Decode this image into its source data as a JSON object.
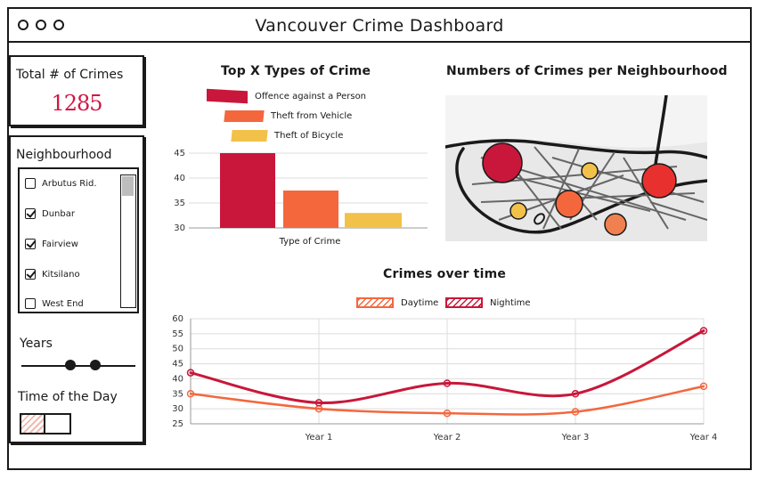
{
  "window": {
    "title": "Vancouver Crime Dashboard"
  },
  "total": {
    "label": "Total # of Crimes",
    "value": "1285",
    "color": "#d11745"
  },
  "filters": {
    "neighbourhood_label": "Neighbourhood",
    "neighbourhoods": [
      {
        "label": "Arbutus Rid.",
        "checked": false
      },
      {
        "label": "Dunbar",
        "checked": true
      },
      {
        "label": "Fairview",
        "checked": true
      },
      {
        "label": "Kitsilano",
        "checked": true
      },
      {
        "label": "West End",
        "checked": false
      }
    ],
    "years_label": "Years",
    "years_range": [
      0.43,
      0.65
    ],
    "time_of_day_label": "Time of the Day",
    "time_of_day_selected": "left"
  },
  "bar_section": {
    "title": "Top X Types of Crime",
    "legend": [
      {
        "label": "Offence against a Person",
        "color": "#c8173a"
      },
      {
        "label": "Theft from Vehicle",
        "color": "#f4673d"
      },
      {
        "label": "Theft of Bicycle",
        "color": "#f2c14a"
      }
    ]
  },
  "map_section": {
    "title": "Numbers of Crimes per Neighbourhood",
    "marker_colors": [
      "#c8173a",
      "#e8312f",
      "#f4673d",
      "#f08050",
      "#f2c14a"
    ]
  },
  "line_section": {
    "title": "Crimes over time",
    "legend": [
      {
        "label": "Daytime",
        "color": "#f4673d"
      },
      {
        "label": "Nightime",
        "color": "#c8173a"
      }
    ]
  },
  "chart_data": [
    {
      "type": "bar",
      "title": "Top X Types of Crime",
      "xlabel": "Type of Crime",
      "ylabel": "",
      "categories": [
        "Offence against a Person",
        "Theft from Vehicle",
        "Theft of Bicycle"
      ],
      "values": [
        45,
        37.5,
        33
      ],
      "colors": [
        "#c8173a",
        "#f4673d",
        "#f2c14a"
      ],
      "ylim": [
        30,
        45
      ],
      "yticks": [
        45,
        40,
        35,
        30
      ],
      "grid": true
    },
    {
      "type": "line",
      "title": "Crimes over time",
      "xlabel": "",
      "ylabel": "",
      "x": [
        "",
        "Year 1",
        "Year 2",
        "Year 3",
        "Year 4"
      ],
      "series": [
        {
          "name": "Daytime",
          "values": [
            35,
            30,
            28.5,
            29,
            37.5
          ],
          "color": "#f4673d"
        },
        {
          "name": "Nightime",
          "values": [
            42,
            32,
            38.5,
            35,
            56
          ],
          "color": "#c8173a"
        }
      ],
      "ylim": [
        25,
        60
      ],
      "yticks": [
        60,
        55,
        50,
        45,
        40,
        35,
        30,
        25
      ],
      "grid": true,
      "legend": "top"
    }
  ]
}
